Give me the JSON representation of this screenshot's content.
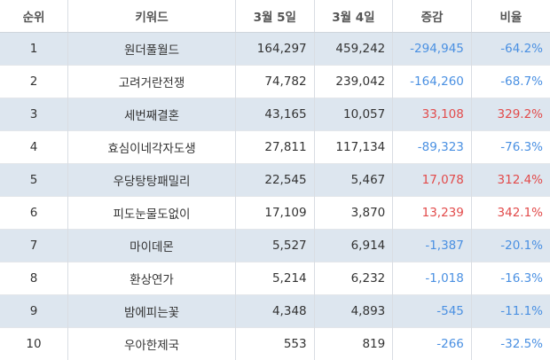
{
  "headers": {
    "rank": "순위",
    "keyword": "키워드",
    "mar5": "3월 5일",
    "mar4": "3월 4일",
    "change": "증감",
    "ratio": "비율"
  },
  "colors": {
    "negative": "#4a90e2",
    "positive": "#e24b4b",
    "row_shade": "#dde6ef"
  },
  "rows": [
    {
      "rank": "1",
      "keyword": "원더풀월드",
      "mar5": "164,297",
      "mar4": "459,242",
      "change": "-294,945",
      "ratio": "-64.2%",
      "sign": "neg"
    },
    {
      "rank": "2",
      "keyword": "고려거란전쟁",
      "mar5": "74,782",
      "mar4": "239,042",
      "change": "-164,260",
      "ratio": "-68.7%",
      "sign": "neg"
    },
    {
      "rank": "3",
      "keyword": "세번째결혼",
      "mar5": "43,165",
      "mar4": "10,057",
      "change": "33,108",
      "ratio": "329.2%",
      "sign": "pos"
    },
    {
      "rank": "4",
      "keyword": "효심이네각자도생",
      "mar5": "27,811",
      "mar4": "117,134",
      "change": "-89,323",
      "ratio": "-76.3%",
      "sign": "neg"
    },
    {
      "rank": "5",
      "keyword": "우당탕탕패밀리",
      "mar5": "22,545",
      "mar4": "5,467",
      "change": "17,078",
      "ratio": "312.4%",
      "sign": "pos"
    },
    {
      "rank": "6",
      "keyword": "피도눈물도없이",
      "mar5": "17,109",
      "mar4": "3,870",
      "change": "13,239",
      "ratio": "342.1%",
      "sign": "pos"
    },
    {
      "rank": "7",
      "keyword": "마이데몬",
      "mar5": "5,527",
      "mar4": "6,914",
      "change": "-1,387",
      "ratio": "-20.1%",
      "sign": "neg"
    },
    {
      "rank": "8",
      "keyword": "환상연가",
      "mar5": "5,214",
      "mar4": "6,232",
      "change": "-1,018",
      "ratio": "-16.3%",
      "sign": "neg"
    },
    {
      "rank": "9",
      "keyword": "밤에피는꽃",
      "mar5": "4,348",
      "mar4": "4,893",
      "change": "-545",
      "ratio": "-11.1%",
      "sign": "neg"
    },
    {
      "rank": "10",
      "keyword": "우아한제국",
      "mar5": "553",
      "mar4": "819",
      "change": "-266",
      "ratio": "-32.5%",
      "sign": "neg"
    }
  ]
}
